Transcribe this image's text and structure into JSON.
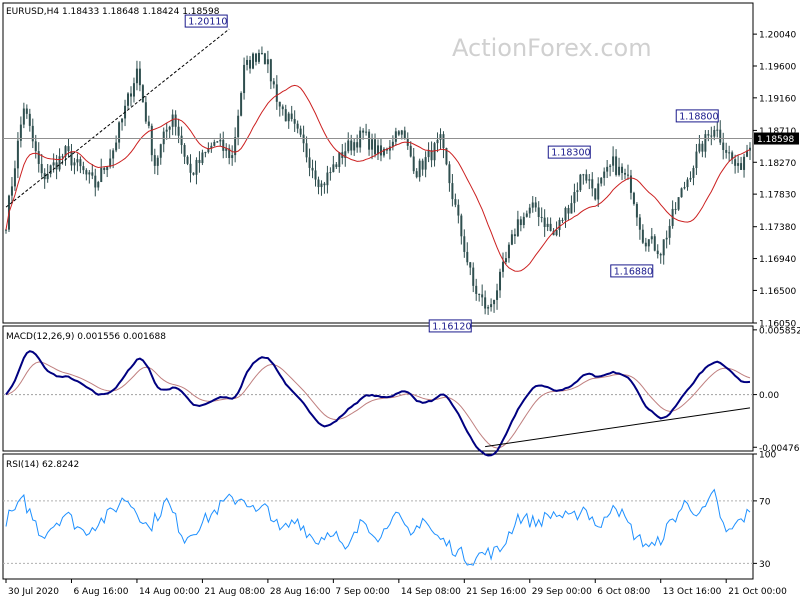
{
  "watermark": "ActionForex.com",
  "chart_data": [
    {
      "type": "candlestick",
      "title": "EURUSD,H4  1.18433 1.18648 1.18424 1.18598",
      "ylim": [
        1.1605,
        1.2047
      ],
      "y_ticks": [
        "1.20040",
        "1.19600",
        "1.19160",
        "1.18710",
        "1.18270",
        "1.17830",
        "1.17380",
        "1.16940",
        "1.16500",
        "1.16050"
      ],
      "y_tick_values": [
        1.2004,
        1.196,
        1.1916,
        1.1871,
        1.1827,
        1.1783,
        1.1738,
        1.1694,
        1.165,
        1.1605
      ],
      "current_price": {
        "value": 1.18598,
        "label": "1.18598"
      },
      "annotations": [
        {
          "label": "1.20110",
          "x": 75,
          "y": 1.2011
        },
        {
          "label": "1.16120",
          "x": 157,
          "y": 1.1612
        },
        {
          "label": "1.18300",
          "x": 197,
          "y": 1.183
        },
        {
          "label": "1.16880",
          "x": 218,
          "y": 1.1688
        },
        {
          "label": "1.18800",
          "x": 240,
          "y": 1.188
        }
      ],
      "trendline": {
        "from": {
          "x": 0,
          "y": 1.1765
        },
        "to": {
          "x": 75,
          "y": 1.2011
        }
      },
      "ma_period_note": "",
      "colors": {
        "candle": "#2f4f4f",
        "ma": "#cc2020",
        "trend": "#000000"
      }
    },
    {
      "type": "line",
      "title": "MACD(12,26,9) 0.001556 0.001688",
      "ylim": [
        -0.0051,
        0.0062
      ],
      "y_ticks": [
        "0.005852",
        "0.00",
        "-0.004761"
      ],
      "y_tick_values": [
        0.005852,
        0,
        -0.004761
      ],
      "series": [
        {
          "name": "MACD",
          "color": "#000080"
        },
        {
          "name": "Signal",
          "color": "#c08080"
        }
      ],
      "trendline": {
        "from": {
          "x": 161,
          "y": -0.0047
        },
        "to": {
          "x": 250,
          "y": -0.0012
        }
      }
    },
    {
      "type": "line",
      "title": "RSI(14) 62.8242",
      "ylim": [
        20,
        100
      ],
      "y_ticks": [
        "100",
        "70",
        "30"
      ],
      "y_tick_values": [
        100,
        70,
        30
      ],
      "series": [
        {
          "name": "RSI",
          "color": "#1e90ff"
        }
      ],
      "levels": [
        70,
        30
      ]
    }
  ],
  "x_axis": {
    "labels": [
      "30 Jul 2020",
      "6 Aug 16:00",
      "14 Aug 00:00",
      "21 Aug 08:00",
      "28 Aug 16:00",
      "7 Sep 00:00",
      "14 Sep 08:00",
      "21 Sep 16:00",
      "29 Sep 00:00",
      "6 Oct 08:00",
      "13 Oct 16:00",
      "21 Oct 00:00"
    ],
    "label_bars": [
      0,
      22,
      44,
      66,
      88,
      110,
      132,
      154,
      176,
      198,
      220,
      242
    ]
  },
  "price_anchors": [
    [
      0,
      1.1745
    ],
    [
      6,
      1.1905
    ],
    [
      12,
      1.1805
    ],
    [
      20,
      1.184
    ],
    [
      30,
      1.1795
    ],
    [
      36,
      1.1845
    ],
    [
      44,
      1.1955
    ],
    [
      50,
      1.1825
    ],
    [
      56,
      1.1895
    ],
    [
      62,
      1.181
    ],
    [
      70,
      1.1855
    ],
    [
      76,
      1.1835
    ],
    [
      80,
      1.1955
    ],
    [
      86,
      1.1985
    ],
    [
      92,
      1.1905
    ],
    [
      98,
      1.1865
    ],
    [
      106,
      1.1795
    ],
    [
      114,
      1.1845
    ],
    [
      120,
      1.1865
    ],
    [
      126,
      1.1835
    ],
    [
      132,
      1.1875
    ],
    [
      138,
      1.1815
    ],
    [
      146,
      1.1855
    ],
    [
      152,
      1.1745
    ],
    [
      157,
      1.1655
    ],
    [
      162,
      1.1622
    ],
    [
      166,
      1.1665
    ],
    [
      172,
      1.1745
    ],
    [
      178,
      1.1765
    ],
    [
      184,
      1.1725
    ],
    [
      190,
      1.1775
    ],
    [
      194,
      1.1815
    ],
    [
      198,
      1.1785
    ],
    [
      204,
      1.1825
    ],
    [
      210,
      1.1795
    ],
    [
      214,
      1.1725
    ],
    [
      220,
      1.1705
    ],
    [
      226,
      1.1775
    ],
    [
      232,
      1.1835
    ],
    [
      238,
      1.1878
    ],
    [
      242,
      1.1845
    ],
    [
      246,
      1.1815
    ],
    [
      250,
      1.1858
    ]
  ],
  "rsi_anchors": [
    [
      0,
      58
    ],
    [
      6,
      70
    ],
    [
      12,
      48
    ],
    [
      20,
      62
    ],
    [
      26,
      50
    ],
    [
      34,
      60
    ],
    [
      40,
      72
    ],
    [
      44,
      64
    ],
    [
      48,
      52
    ],
    [
      54,
      70
    ],
    [
      60,
      46
    ],
    [
      66,
      56
    ],
    [
      74,
      70
    ],
    [
      80,
      72
    ],
    [
      84,
      62
    ],
    [
      88,
      66
    ],
    [
      92,
      50
    ],
    [
      98,
      58
    ],
    [
      104,
      44
    ],
    [
      110,
      52
    ],
    [
      114,
      36
    ],
    [
      120,
      58
    ],
    [
      126,
      46
    ],
    [
      130,
      64
    ],
    [
      136,
      46
    ],
    [
      140,
      60
    ],
    [
      144,
      48
    ],
    [
      150,
      40
    ],
    [
      156,
      32
    ],
    [
      160,
      36
    ],
    [
      166,
      38
    ],
    [
      172,
      60
    ],
    [
      178,
      56
    ],
    [
      184,
      62
    ],
    [
      190,
      58
    ],
    [
      194,
      66
    ],
    [
      200,
      52
    ],
    [
      204,
      70
    ],
    [
      208,
      58
    ],
    [
      212,
      46
    ],
    [
      218,
      40
    ],
    [
      222,
      52
    ],
    [
      228,
      68
    ],
    [
      234,
      62
    ],
    [
      238,
      74
    ],
    [
      242,
      48
    ],
    [
      246,
      56
    ],
    [
      250,
      62.8
    ]
  ]
}
